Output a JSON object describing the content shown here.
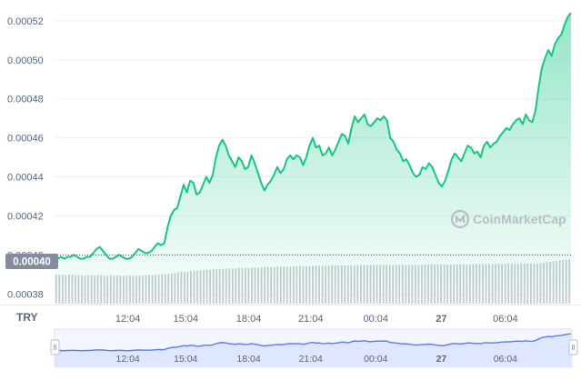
{
  "chart_data": {
    "type": "area",
    "title": "",
    "xlabel": "",
    "ylabel": "",
    "y_ticks": [
      "0.00052",
      "0.00050",
      "0.00048",
      "0.00046",
      "0.00044",
      "0.00042",
      "0.00040",
      "0.00038"
    ],
    "ylim": [
      0.000375,
      0.000526
    ],
    "x_ticks": [
      "12:04",
      "15:04",
      "18:04",
      "21:04",
      "00:04",
      "27",
      "06:04"
    ],
    "currency_label": "TRY",
    "current_price_label": "0.00040",
    "watermark": "CoinMarketCap",
    "grid": true,
    "colors": {
      "line": "#16c784",
      "fill_top": "#16c784",
      "volume": "#c7cbd3",
      "price_tag_bg": "#858ca2",
      "navigator_line": "#5b7bf0",
      "navigator_fill": "#dfe6ff"
    },
    "series": [
      {
        "x": [
          0,
          1,
          2,
          3,
          4,
          5,
          6,
          7,
          8,
          9,
          10,
          11,
          12,
          13,
          14,
          15,
          16,
          17,
          18,
          19,
          20,
          21,
          22,
          23,
          24,
          25,
          26,
          27,
          28,
          29,
          30,
          31,
          32,
          33,
          34,
          35,
          36,
          37,
          38,
          39,
          40,
          41,
          42,
          43,
          44,
          45,
          46,
          47,
          48,
          49,
          50,
          51,
          52,
          53,
          54,
          55,
          56,
          57,
          58,
          59,
          60,
          61,
          62,
          63,
          64,
          65,
          66,
          67,
          68,
          69,
          70,
          71,
          72,
          73,
          74,
          75,
          76,
          77,
          78,
          79,
          80,
          81,
          82,
          83,
          84,
          85,
          86,
          87,
          88,
          89,
          90,
          91,
          92,
          93,
          94,
          95,
          96,
          97,
          98,
          99,
          100,
          101,
          102,
          103,
          104,
          105,
          106,
          107,
          108,
          109,
          110,
          111,
          112,
          113,
          114,
          115,
          116,
          117,
          118,
          119,
          120,
          121,
          122,
          123,
          124,
          125,
          126,
          127,
          128,
          129,
          130,
          131,
          132,
          133,
          134,
          135,
          136,
          137,
          138,
          139,
          140,
          141,
          142,
          143,
          144,
          145,
          146,
          147,
          148,
          149,
          150,
          151,
          152,
          153,
          154,
          155,
          156,
          157,
          158,
          159,
          160
        ],
        "values": [
          0.000398,
          0.000398,
          0.000399,
          0.000398,
          0.000399,
          0.000399,
          0.0004,
          0.000399,
          0.000398,
          0.000398,
          0.000399,
          0.000399,
          0.000401,
          0.000403,
          0.000404,
          0.000402,
          0.0004,
          0.000398,
          0.000398,
          0.000399,
          0.0004,
          0.000399,
          0.000398,
          0.000398,
          0.000399,
          0.000401,
          0.000403,
          0.000402,
          0.000401,
          0.000401,
          0.000402,
          0.000404,
          0.000406,
          0.000405,
          0.000406,
          0.000414,
          0.00042,
          0.000423,
          0.000424,
          0.00043,
          0.000436,
          0.000432,
          0.000438,
          0.000437,
          0.000431,
          0.000432,
          0.000436,
          0.00044,
          0.000437,
          0.000441,
          0.00045,
          0.000456,
          0.000459,
          0.000456,
          0.000451,
          0.000448,
          0.000445,
          0.00045,
          0.000448,
          0.000444,
          0.000445,
          0.000451,
          0.000447,
          0.000442,
          0.000437,
          0.000433,
          0.000436,
          0.000438,
          0.000441,
          0.000445,
          0.000442,
          0.000444,
          0.000449,
          0.000451,
          0.000449,
          0.000451,
          0.00045,
          0.000446,
          0.00045,
          0.000456,
          0.00046,
          0.000455,
          0.000456,
          0.000451,
          0.000452,
          0.000455,
          0.000451,
          0.000454,
          0.000458,
          0.000462,
          0.000461,
          0.000457,
          0.000465,
          0.000471,
          0.000468,
          0.00047,
          0.000472,
          0.000467,
          0.000466,
          0.000468,
          0.00047,
          0.000469,
          0.000471,
          0.000469,
          0.00046,
          0.000458,
          0.000454,
          0.000452,
          0.000448,
          0.000449,
          0.000446,
          0.000442,
          0.00044,
          0.000441,
          0.000445,
          0.000444,
          0.000447,
          0.000445,
          0.000441,
          0.000437,
          0.000435,
          0.000438,
          0.000443,
          0.000449,
          0.000452,
          0.00045,
          0.000448,
          0.000452,
          0.000456,
          0.000455,
          0.000452,
          0.000453,
          0.00045,
          0.000456,
          0.000458,
          0.000455,
          0.000457,
          0.000458,
          0.000461,
          0.000463,
          0.000465,
          0.000464,
          0.000467,
          0.000469,
          0.00047,
          0.000467,
          0.000472,
          0.000469,
          0.000468,
          0.000474,
          0.000486,
          0.000496,
          0.000501,
          0.000505,
          0.000502,
          0.000508,
          0.000511,
          0.000513,
          0.000518,
          0.000522,
          0.000524
        ]
      }
    ],
    "volume": [
      0.65,
      0.65,
      0.64,
      0.64,
      0.65,
      0.65,
      0.64,
      0.64,
      0.64,
      0.63,
      0.64,
      0.64,
      0.63,
      0.64,
      0.64,
      0.63,
      0.63,
      0.64,
      0.63,
      0.63,
      0.63,
      0.62,
      0.63,
      0.63,
      0.63,
      0.63,
      0.63,
      0.63,
      0.64,
      0.64,
      0.64,
      0.65,
      0.65,
      0.66,
      0.66,
      0.67,
      0.68,
      0.69,
      0.7,
      0.71,
      0.71,
      0.72,
      0.73,
      0.73,
      0.74,
      0.75,
      0.75,
      0.76,
      0.76,
      0.77,
      0.77,
      0.78,
      0.78,
      0.78,
      0.79,
      0.79,
      0.79,
      0.8,
      0.8,
      0.8,
      0.8,
      0.81,
      0.81,
      0.81,
      0.81,
      0.82,
      0.82,
      0.82,
      0.82,
      0.83,
      0.83,
      0.83,
      0.83,
      0.83,
      0.84,
      0.84,
      0.84,
      0.84,
      0.84,
      0.84,
      0.85,
      0.85,
      0.85,
      0.85,
      0.85,
      0.85,
      0.86,
      0.86,
      0.86,
      0.86,
      0.86,
      0.86,
      0.86,
      0.86,
      0.86,
      0.87,
      0.87,
      0.87,
      0.87,
      0.87,
      0.87,
      0.87,
      0.87,
      0.87,
      0.87,
      0.87,
      0.87,
      0.87,
      0.87,
      0.87,
      0.87,
      0.87,
      0.87,
      0.87,
      0.87,
      0.88,
      0.88,
      0.88,
      0.88,
      0.88,
      0.88,
      0.88,
      0.88,
      0.88,
      0.88,
      0.88,
      0.88,
      0.88,
      0.88,
      0.88,
      0.89,
      0.89,
      0.89,
      0.89,
      0.89,
      0.89,
      0.89,
      0.89,
      0.89,
      0.89,
      0.89,
      0.9,
      0.9,
      0.9,
      0.9,
      0.9,
      0.9,
      0.9,
      0.9,
      0.9,
      0.9,
      0.91,
      0.92,
      0.93,
      0.94,
      0.95,
      0.96,
      0.97,
      0.98,
      0.99,
      1.0
    ]
  }
}
